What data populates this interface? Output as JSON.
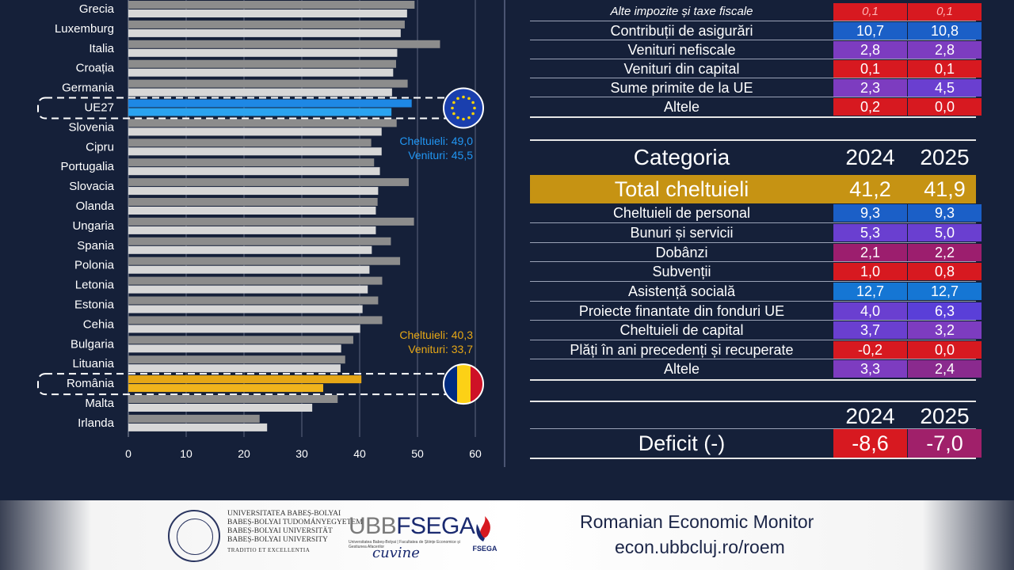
{
  "chart_data": {
    "type": "bar",
    "orientation": "horizontal",
    "categories": [
      "Grecia",
      "Luxemburg",
      "Italia",
      "Croația",
      "Germania",
      "UE27",
      "Slovenia",
      "Cipru",
      "Portugalia",
      "Slovacia",
      "Olanda",
      "Ungaria",
      "Spania",
      "Polonia",
      "Letonia",
      "Estonia",
      "Cehia",
      "Bulgaria",
      "Lituania",
      "România",
      "Malta",
      "Irlanda"
    ],
    "series": [
      {
        "name": "Cheltuieli",
        "values": [
          49.5,
          47.8,
          53.9,
          46.3,
          48.3,
          49.0,
          46.4,
          42.0,
          42.5,
          48.5,
          43.1,
          49.4,
          45.4,
          47.0,
          43.9,
          43.2,
          43.9,
          38.9,
          37.5,
          40.3,
          36.2,
          22.7
        ]
      },
      {
        "name": "Venituri",
        "values": [
          48.2,
          47.1,
          46.5,
          45.8,
          45.6,
          45.5,
          43.8,
          43.8,
          43.5,
          43.2,
          42.8,
          42.8,
          42.1,
          41.7,
          41.4,
          40.5,
          40.1,
          36.8,
          36.7,
          33.7,
          31.8,
          24.0
        ]
      }
    ],
    "xlim": [
      0,
      60
    ],
    "xticks": [
      "0",
      "10",
      "20",
      "30",
      "40",
      "50",
      "60"
    ],
    "highlights": {
      "UE27": {
        "flag": "eu",
        "color": "#1e88e5",
        "light": "#2aa3f0"
      },
      "România": {
        "flag": "ro",
        "color": "#e6a716",
        "light": "#f0b41c"
      }
    },
    "annotations": [
      {
        "text": "Cheltuieli: 49,0",
        "color": "#2196f3",
        "near": "UE27"
      },
      {
        "text": "Venituri: 45,5",
        "color": "#2196f3",
        "near": "UE27"
      },
      {
        "text": "Cheltuieli: 40,3",
        "color": "#e6a716",
        "near": "România"
      },
      {
        "text": "Venituri: 33,7",
        "color": "#e6a716",
        "near": "România"
      }
    ],
    "colors": {
      "cheltuieli": "#8c8c8c",
      "venituri": "#d7d7d7",
      "bg": "#152039"
    }
  },
  "revenue_table": {
    "rows": [
      {
        "label": "Alte impozite și taxe fiscale",
        "v2024": "0,1",
        "v2025": "0,1",
        "c1": "#d71920",
        "c2": "#d71920",
        "italic": true
      },
      {
        "label": "Contribuții de asigurări",
        "v2024": "10,7",
        "v2025": "10,8",
        "c1": "#1b5fc7",
        "c2": "#1b5fc7"
      },
      {
        "label": "Venituri nefiscale",
        "v2024": "2,8",
        "v2025": "2,8",
        "c1": "#7d3cc0",
        "c2": "#7d3cc0"
      },
      {
        "label": "Venituri din capital",
        "v2024": "0,1",
        "v2025": "0,1",
        "c1": "#d71920",
        "c2": "#d71920"
      },
      {
        "label": "Sume primite de la UE",
        "v2024": "2,3",
        "v2025": "4,5",
        "c1": "#7d3cc0",
        "c2": "#6a3fd0"
      },
      {
        "label": "Altele",
        "v2024": "0,2",
        "v2025": "0,0",
        "c1": "#d71920",
        "c2": "#d71920"
      }
    ]
  },
  "expense_table": {
    "header": {
      "label": "Categoria",
      "y1": "2024",
      "y2": "2025"
    },
    "total": {
      "label": "Total cheltuieli",
      "v2024": "41,2",
      "v2025": "41,9"
    },
    "rows": [
      {
        "label": "Cheltuieli de personal",
        "v2024": "9,3",
        "v2025": "9,3",
        "c1": "#1b5fc7",
        "c2": "#1b5fc7"
      },
      {
        "label": "Bunuri și servicii",
        "v2024": "5,3",
        "v2025": "5,0",
        "c1": "#6a3fd0",
        "c2": "#6a3fd0"
      },
      {
        "label": "Dobânzi",
        "v2024": "2,1",
        "v2025": "2,2",
        "c1": "#9c1e6e",
        "c2": "#9c1e6e"
      },
      {
        "label": "Subvenții",
        "v2024": "1,0",
        "v2025": "0,8",
        "c1": "#d71920",
        "c2": "#d71920"
      },
      {
        "label": "Asistență socială",
        "v2024": "12,7",
        "v2025": "12,7",
        "c1": "#1576d4",
        "c2": "#1576d4"
      },
      {
        "label": "Proiecte finantate din fonduri UE",
        "v2024": "4,0",
        "v2025": "6,3",
        "c1": "#6a3fd0",
        "c2": "#5a3fd8"
      },
      {
        "label": "Cheltuieli de capital",
        "v2024": "3,7",
        "v2025": "3,2",
        "c1": "#6a3fd0",
        "c2": "#7d3cc0"
      },
      {
        "label": "Plăți în ani precedenți și recuperate",
        "v2024": "-0,2",
        "v2025": "0,0",
        "c1": "#d71920",
        "c2": "#d71920"
      },
      {
        "label": "Altele",
        "v2024": "3,3",
        "v2025": "2,4",
        "c1": "#7d3cc0",
        "c2": "#8a2a8e"
      }
    ]
  },
  "deficit_table": {
    "header": {
      "y1": "2024",
      "y2": "2025"
    },
    "label": "Deficit (-)",
    "v2024": "-8,6",
    "v2025": "-7,0",
    "c1": "#d71920",
    "c2": "#a0206a"
  },
  "footer": {
    "university_lines": [
      "UNIVERSITATEA BABEȘ-BOLYAI",
      "BABEȘ-BOLYAI TUDOMÁNYEGYETEM",
      "BABEȘ-BOLYAI UNIVERSITÄT",
      "BABEȘ-BOLYAI UNIVERSITY"
    ],
    "motto": "TRADITIO ET EXCELLENTIA",
    "ubb_a": "UBB",
    "ubb_b": "FSEGA",
    "ubb_sub": "Universitatea Babeș-Bolyai | Facultatea de Științe Economice și Gestiunea Afacerilor",
    "cuvine": "cuvine",
    "fsega": "FSEGA",
    "monitor_title": "Romanian Economic Monitor",
    "monitor_url": "econ.ubbcluj.ro/roem"
  }
}
